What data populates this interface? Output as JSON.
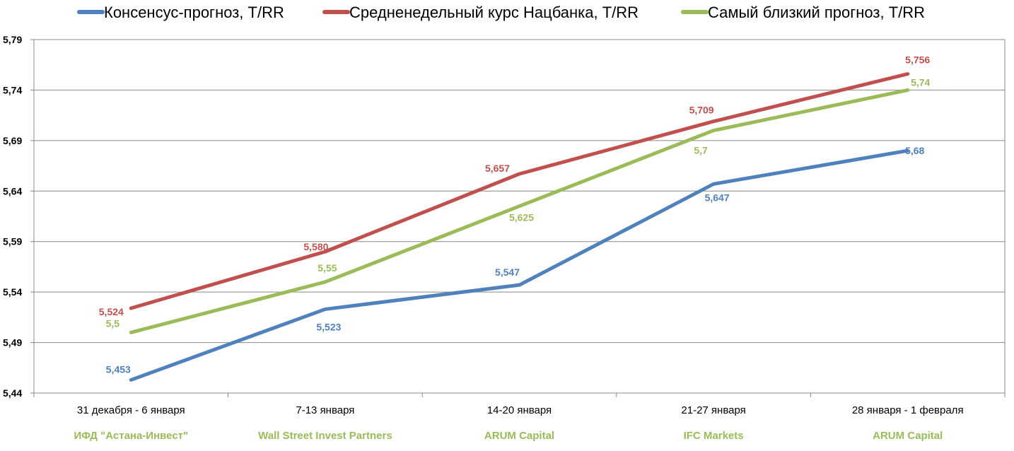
{
  "chart_data": {
    "type": "line",
    "title": "",
    "xlabel": "",
    "ylabel": "",
    "ylim": [
      5.44,
      5.79
    ],
    "yticks": [
      "5,44",
      "5,49",
      "5,54",
      "5,59",
      "5,64",
      "5,69",
      "5,74",
      "5,79"
    ],
    "ytick_values": [
      5.44,
      5.49,
      5.54,
      5.59,
      5.64,
      5.69,
      5.74,
      5.79
    ],
    "grid": true,
    "legend_position": "top",
    "categories": [
      "31 декабря - 6 января",
      "7-13 января",
      "14-20 января",
      "21-27 января",
      "28 января - 1 февраля"
    ],
    "sublabels": [
      "ИФД \"Астана-Инвест\"",
      "Wall Street Invest Partners",
      "ARUM Capital",
      "IFC Markets",
      "ARUM Capital"
    ],
    "sublabel_color": "#9BBB59",
    "series": [
      {
        "name": "Консенсус-прогноз, Т/RR",
        "color": "#4F81BD",
        "values": [
          5.453,
          5.523,
          5.547,
          5.647,
          5.68
        ],
        "labels": [
          "5,453",
          "5,523",
          "5,547",
          "5,647",
          "5,68"
        ]
      },
      {
        "name": "Средненедельный курс Нацбанка, Т/RR",
        "color": "#C0504D",
        "values": [
          5.524,
          5.58,
          5.657,
          5.709,
          5.756
        ],
        "labels": [
          "5,524",
          "5,580",
          "5,657",
          "5,709",
          "5,756"
        ]
      },
      {
        "name": "Самый близкий прогноз, Т/RR",
        "color": "#9BBB59",
        "values": [
          5.5,
          5.55,
          5.625,
          5.7,
          5.74
        ],
        "labels": [
          "5,5",
          "5,55",
          "5,625",
          "5,7",
          "5,74"
        ]
      }
    ]
  }
}
